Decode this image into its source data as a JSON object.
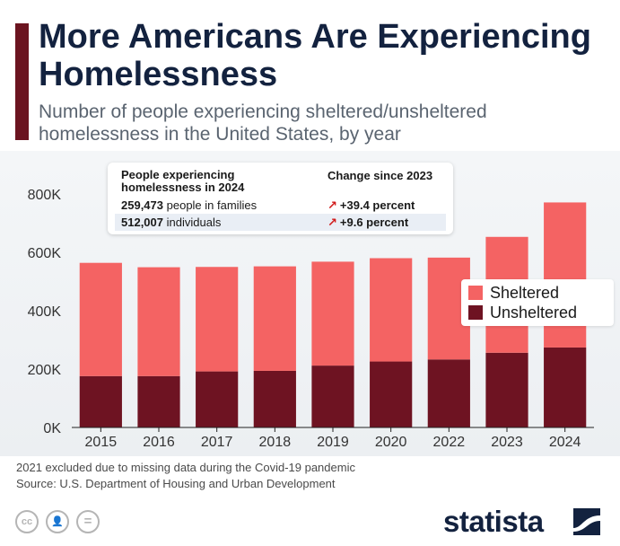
{
  "header": {
    "title": "More Americans Are Experiencing Homelessness",
    "subtitle": "Number of people experiencing sheltered/unsheltered homelessness in the United States, by year"
  },
  "info_box": {
    "heading_left": "People experiencing homelessness in 2024",
    "heading_right": "Change since 2023",
    "rows": [
      {
        "value": "259,473",
        "label": "people in families",
        "change": "+39.4 percent"
      },
      {
        "value": "512,007",
        "label": "individuals",
        "change": "+9.6 percent"
      }
    ]
  },
  "legend": {
    "sheltered": "Sheltered",
    "unsheltered": "Unsheltered"
  },
  "footer": {
    "note": "2021 excluded due to missing data during the Covid-19 pandemic",
    "source": "Source: U.S. Department of Housing and Urban Development",
    "brand": "statista"
  },
  "colors": {
    "sheltered": "#f46363",
    "unsheltered": "#6e1322",
    "accent": "#6b1420",
    "title": "#13223f"
  },
  "icons": [
    "cc-icon",
    "by-person-icon",
    "nd-equals-icon",
    "statista-logo-icon"
  ],
  "chart_data": {
    "type": "bar",
    "stacked": true,
    "categories": [
      "2015",
      "2016",
      "2017",
      "2018",
      "2019",
      "2020",
      "2022",
      "2023",
      "2024"
    ],
    "series": [
      {
        "name": "Unsheltered",
        "values": [
          176000,
          176000,
          192000,
          194000,
          212000,
          226000,
          233000,
          256000,
          274000
        ]
      },
      {
        "name": "Sheltered",
        "values": [
          388000,
          373000,
          358000,
          358000,
          356000,
          354000,
          349000,
          397000,
          497000
        ]
      }
    ],
    "y_ticks": [
      "0K",
      "200K",
      "400K",
      "600K",
      "800K"
    ],
    "ylim": [
      0,
      800000
    ],
    "grid": false,
    "legend_position": "right"
  }
}
